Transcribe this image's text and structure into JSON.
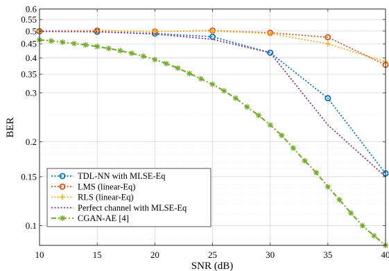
{
  "chart_data": {
    "type": "line",
    "title": "",
    "xlabel": "SNR (dB)",
    "ylabel": "BER",
    "xscale": "linear",
    "yscale": "log",
    "xlim": [
      10,
      40
    ],
    "ylim": [
      0.085,
      0.6
    ],
    "grid": true,
    "minor_grid": true,
    "legend_position": "bottom-left",
    "x_ticks": [
      10,
      15,
      20,
      25,
      30,
      35,
      40
    ],
    "y_ticks": [
      0.1,
      0.15,
      0.2,
      0.3,
      0.35,
      0.4,
      0.45,
      0.5,
      0.55,
      0.6
    ],
    "y_tick_labels": [
      "0.1",
      "0.15",
      "0.2",
      "0.3",
      "0.35",
      "0.4",
      "0.45",
      "0.5",
      "0.55",
      "0.6"
    ],
    "series": [
      {
        "name": "TDL-NN with MLSE-Eq",
        "color": "#0072BD",
        "line_style": "dotted",
        "marker": "circle",
        "x": [
          10,
          15,
          20,
          25,
          30,
          35,
          40
        ],
        "y": [
          0.499,
          0.497,
          0.49,
          0.477,
          0.418,
          0.287,
          0.154
        ]
      },
      {
        "name": "LMS (linear-Eq)",
        "color": "#D95319",
        "line_style": "dotted",
        "marker": "diamond",
        "x": [
          10,
          15,
          20,
          25,
          30,
          35,
          40
        ],
        "y": [
          0.5,
          0.502,
          0.498,
          0.502,
          0.493,
          0.475,
          0.378
        ]
      },
      {
        "name": "RLS (linear-Eq)",
        "color": "#EDB120",
        "line_style": "dotted",
        "marker": "plus",
        "x": [
          10,
          15,
          20,
          25,
          30,
          35,
          40
        ],
        "y": [
          0.5,
          0.5,
          0.499,
          0.5,
          0.49,
          0.45,
          0.388
        ]
      },
      {
        "name": "Perfect channel with MLSE-Eq",
        "color": "#7E2F8E",
        "line_style": "dotted",
        "marker": "none",
        "x": [
          10,
          15,
          20,
          25,
          30,
          35,
          40
        ],
        "y": [
          0.499,
          0.497,
          0.488,
          0.467,
          0.418,
          0.23,
          0.15
        ]
      },
      {
        "name": "CGAN-AE [4]",
        "color": "#77AC30",
        "line_style": "dashdot",
        "marker": "asterisk",
        "x": [
          10,
          11,
          12,
          13,
          14,
          15,
          16,
          17,
          18,
          19,
          20,
          21,
          22,
          23,
          24,
          25,
          26,
          27,
          28,
          29,
          30,
          31,
          32,
          33,
          34,
          35,
          36,
          37,
          38,
          39,
          40
        ],
        "y": [
          0.465,
          0.461,
          0.456,
          0.451,
          0.446,
          0.44,
          0.433,
          0.425,
          0.416,
          0.406,
          0.395,
          0.382,
          0.368,
          0.352,
          0.337,
          0.322,
          0.305,
          0.287,
          0.267,
          0.249,
          0.23,
          0.211,
          0.19,
          0.171,
          0.155,
          0.138,
          0.124,
          0.111,
          0.1,
          0.092,
          0.085
        ]
      }
    ]
  }
}
